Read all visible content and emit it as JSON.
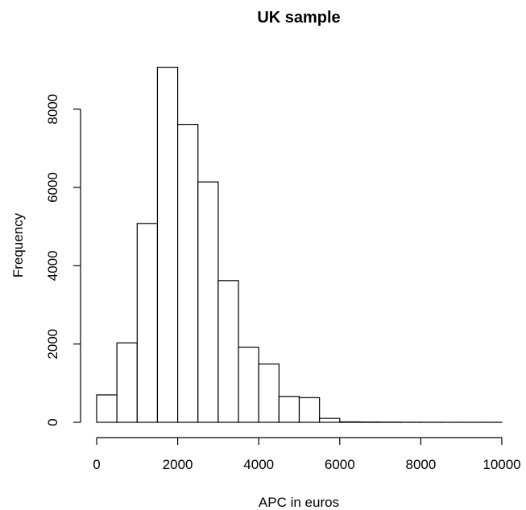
{
  "chart_data": {
    "type": "bar",
    "title": "UK sample",
    "xlabel": "APC in euros",
    "ylabel": "Frequency",
    "xlim": [
      0,
      10000
    ],
    "ylim": [
      0,
      9000
    ],
    "bin_width": 500,
    "bins": [
      {
        "x0": 0,
        "x1": 500,
        "count": 700
      },
      {
        "x0": 500,
        "x1": 1000,
        "count": 2030
      },
      {
        "x0": 1000,
        "x1": 1500,
        "count": 5080
      },
      {
        "x0": 1500,
        "x1": 2000,
        "count": 9070
      },
      {
        "x0": 2000,
        "x1": 2500,
        "count": 7610
      },
      {
        "x0": 2500,
        "x1": 3000,
        "count": 6140
      },
      {
        "x0": 3000,
        "x1": 3500,
        "count": 3620
      },
      {
        "x0": 3500,
        "x1": 4000,
        "count": 1920
      },
      {
        "x0": 4000,
        "x1": 4500,
        "count": 1490
      },
      {
        "x0": 4500,
        "x1": 5000,
        "count": 660
      },
      {
        "x0": 5000,
        "x1": 5500,
        "count": 630
      },
      {
        "x0": 5500,
        "x1": 6000,
        "count": 100
      },
      {
        "x0": 6000,
        "x1": 6500,
        "count": 12
      },
      {
        "x0": 6500,
        "x1": 7000,
        "count": 8
      },
      {
        "x0": 7000,
        "x1": 7500,
        "count": 6
      },
      {
        "x0": 7500,
        "x1": 8000,
        "count": 3
      },
      {
        "x0": 8000,
        "x1": 8500,
        "count": 2
      },
      {
        "x0": 8500,
        "x1": 9000,
        "count": 1
      },
      {
        "x0": 9000,
        "x1": 9500,
        "count": 1
      },
      {
        "x0": 9500,
        "x1": 10000,
        "count": 1
      }
    ],
    "x_ticks": [
      0,
      2000,
      4000,
      6000,
      8000,
      10000
    ],
    "y_ticks": [
      0,
      2000,
      4000,
      6000,
      8000
    ],
    "grid": false,
    "legend": "none"
  }
}
